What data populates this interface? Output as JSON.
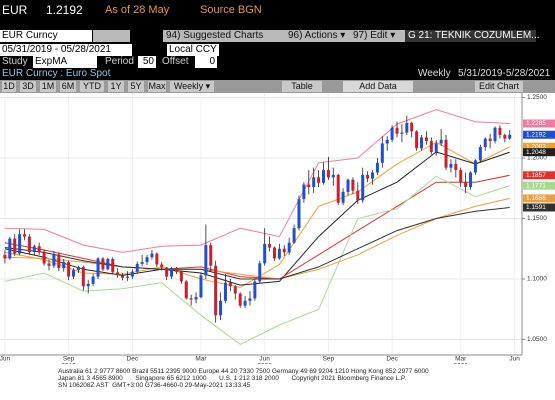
{
  "header": {
    "ticker": "EUR",
    "price": "1.2192",
    "as_of": "As of 28 May",
    "source": "Source BGN"
  },
  "toolbar": {
    "security": "EUR Curncy",
    "suggested": "94) Suggested Charts",
    "actions": "96) Actions ▾",
    "edit": "97) Edit ▾",
    "chart_name": "G 21: TEKNIK COZUMLEM..."
  },
  "range": {
    "dates": "05/31/2019 - 05/28/2021",
    "currency": "Local CCY"
  },
  "study": {
    "label": "Study",
    "name": "ExpMA",
    "period_label": "Period",
    "period": "50",
    "offset_label": "Offset",
    "offset": "0"
  },
  "info": {
    "security_name": "EUR Curncy : Euro Spot",
    "frequency": "Weekly",
    "period": "5/31/2019-5/28/2021"
  },
  "buttons": [
    "1D",
    "3D",
    "1M",
    "6M",
    "YTD",
    "1Y",
    "5Y",
    "Max",
    "Weekly ▾",
    "Table",
    "Add Data",
    "Edit Chart"
  ],
  "chart_data": {
    "type": "candlestick",
    "open": [
      1.12,
      1.117,
      1.1334,
      1.121,
      1.137,
      1.135,
      1.1223,
      1.127,
      1.122,
      1.1128,
      1.1109,
      1.1203,
      1.109,
      1.114,
      1.102,
      1.1073,
      1.11,
      1.094,
      1.096,
      1.102,
      1.117,
      1.108,
      1.1165,
      1.1055,
      1.103,
      1.101,
      1.102,
      1.106,
      1.1125,
      1.114,
      1.118,
      1.121,
      1.112,
      1.1095,
      1.102,
      1.109,
      1.106,
      1.098,
      1.084,
      1.083,
      1.085,
      1.103,
      1.128,
      1.111,
      1.07,
      1.082,
      1.097,
      1.094,
      1.088,
      1.078,
      1.082,
      1.084,
      1.098,
      1.113,
      1.129,
      1.126,
      1.117,
      1.125,
      1.122,
      1.13,
      1.142,
      1.166,
      1.178,
      1.176,
      1.184,
      1.1795,
      1.19,
      1.184,
      1.186,
      1.163,
      1.172,
      1.182,
      1.173,
      1.165,
      1.186,
      1.183,
      1.188,
      1.196,
      1.212,
      1.215,
      1.225,
      1.22,
      1.221,
      1.229,
      1.222,
      1.208,
      1.217,
      1.214,
      1.205,
      1.212,
      1.215,
      1.192,
      1.195,
      1.19,
      1.18,
      1.176,
      1.188,
      1.198,
      1.209,
      1.216,
      1.214,
      1.225,
      1.219,
      1.216
    ],
    "high": [
      1.124,
      1.1347,
      1.137,
      1.141,
      1.141,
      1.137,
      1.1285,
      1.13,
      1.1245,
      1.116,
      1.123,
      1.122,
      1.1165,
      1.115,
      1.109,
      1.111,
      1.111,
      1.099,
      1.104,
      1.118,
      1.118,
      1.1175,
      1.118,
      1.109,
      1.105,
      1.1065,
      1.108,
      1.1145,
      1.12,
      1.12,
      1.124,
      1.122,
      1.114,
      1.11,
      1.11,
      1.11,
      1.107,
      1.099,
      1.087,
      1.089,
      1.105,
      1.145,
      1.13,
      1.115,
      1.089,
      1.104,
      1.1,
      1.095,
      1.089,
      1.086,
      1.09,
      1.1,
      1.115,
      1.142,
      1.135,
      1.127,
      1.129,
      1.128,
      1.134,
      1.145,
      1.169,
      1.18,
      1.19,
      1.192,
      1.19,
      1.1965,
      1.201,
      1.192,
      1.187,
      1.175,
      1.183,
      1.184,
      1.18,
      1.192,
      1.189,
      1.19,
      1.2,
      1.218,
      1.218,
      1.227,
      1.23,
      1.228,
      1.235,
      1.23,
      1.223,
      1.219,
      1.222,
      1.217,
      1.215,
      1.224,
      1.219,
      1.199,
      1.199,
      1.192,
      1.188,
      1.189,
      1.199,
      1.211,
      1.217,
      1.22,
      1.226,
      1.227,
      1.22,
      1.223
    ],
    "low": [
      1.113,
      1.116,
      1.119,
      1.1195,
      1.132,
      1.12,
      1.1195,
      1.12,
      1.111,
      1.107,
      1.109,
      1.1065,
      1.106,
      1.099,
      1.1,
      1.105,
      1.0905,
      1.088,
      1.094,
      1.1,
      1.1065,
      1.107,
      1.104,
      1.101,
      1.099,
      1.0985,
      1.1,
      1.105,
      1.1105,
      1.1115,
      1.116,
      1.11,
      1.107,
      1.099,
      1.1,
      1.104,
      1.096,
      1.083,
      1.078,
      1.08,
      1.084,
      1.1,
      1.106,
      1.064,
      1.066,
      1.08,
      1.09,
      1.083,
      1.076,
      1.076,
      1.078,
      1.082,
      1.097,
      1.111,
      1.123,
      1.115,
      1.116,
      1.119,
      1.12,
      1.129,
      1.14,
      1.163,
      1.17,
      1.171,
      1.176,
      1.178,
      1.182,
      1.177,
      1.161,
      1.161,
      1.169,
      1.17,
      1.162,
      1.163,
      1.18,
      1.178,
      1.186,
      1.192,
      1.206,
      1.213,
      1.217,
      1.213,
      1.219,
      1.217,
      1.206,
      1.206,
      1.211,
      1.203,
      1.202,
      1.21,
      1.19,
      1.188,
      1.184,
      1.176,
      1.171,
      1.174,
      1.186,
      1.196,
      1.206,
      1.208,
      1.212,
      1.216,
      1.213,
      1.215
    ],
    "close": [
      1.117,
      1.1334,
      1.121,
      1.137,
      1.135,
      1.1223,
      1.127,
      1.122,
      1.1128,
      1.1109,
      1.1203,
      1.109,
      1.114,
      1.102,
      1.1073,
      1.11,
      1.094,
      1.096,
      1.102,
      1.117,
      1.108,
      1.1165,
      1.1055,
      1.103,
      1.101,
      1.102,
      1.106,
      1.1125,
      1.114,
      1.118,
      1.121,
      1.112,
      1.1095,
      1.102,
      1.109,
      1.106,
      1.098,
      1.084,
      1.083,
      1.085,
      1.103,
      1.128,
      1.111,
      1.07,
      1.082,
      1.097,
      1.094,
      1.088,
      1.078,
      1.082,
      1.084,
      1.098,
      1.113,
      1.129,
      1.126,
      1.117,
      1.125,
      1.122,
      1.13,
      1.142,
      1.166,
      1.178,
      1.176,
      1.184,
      1.1795,
      1.19,
      1.184,
      1.186,
      1.163,
      1.172,
      1.182,
      1.173,
      1.165,
      1.186,
      1.183,
      1.188,
      1.196,
      1.212,
      1.215,
      1.225,
      1.22,
      1.221,
      1.229,
      1.222,
      1.208,
      1.217,
      1.214,
      1.205,
      1.212,
      1.215,
      1.192,
      1.195,
      1.19,
      1.18,
      1.176,
      1.188,
      1.198,
      1.209,
      1.216,
      1.214,
      1.225,
      1.219,
      1.216,
      1.2192
    ],
    "up_color": "#1f4fd0",
    "down_color": "#c8202c",
    "close_label_color": "#1f4fd0",
    "lines": [
      {
        "color": "#f07aa0",
        "x": [
          0,
          8,
          16,
          24,
          32,
          40,
          48,
          56,
          64,
          72,
          80,
          88,
          96,
          103
        ],
        "values": [
          1.142,
          1.141,
          1.128,
          1.122,
          1.127,
          1.128,
          1.142,
          1.135,
          1.196,
          1.2,
          1.228,
          1.24,
          1.23,
          1.2285
        ]
      },
      {
        "color": "#f0a030",
        "x": [
          0,
          8,
          16,
          24,
          32,
          40,
          48,
          56,
          64,
          72,
          80,
          88,
          96,
          103
        ],
        "values": [
          1.122,
          1.116,
          1.105,
          1.104,
          1.11,
          1.1,
          1.093,
          1.112,
          1.16,
          1.172,
          1.195,
          1.213,
          1.195,
          1.2093
        ]
      },
      {
        "color": "#202020",
        "x": [
          0,
          8,
          16,
          24,
          32,
          40,
          48,
          56,
          64,
          72,
          80,
          88,
          96,
          103
        ],
        "values": [
          1.125,
          1.118,
          1.108,
          1.103,
          1.108,
          1.105,
          1.095,
          1.098,
          1.135,
          1.165,
          1.18,
          1.205,
          1.195,
          1.2048
        ]
      },
      {
        "color": "#e03030",
        "x": [
          0,
          8,
          16,
          24,
          32,
          40,
          48,
          56,
          64,
          72,
          80,
          88,
          96,
          103
        ],
        "values": [
          1.13,
          1.124,
          1.117,
          1.11,
          1.108,
          1.11,
          1.102,
          1.1,
          1.12,
          1.14,
          1.16,
          1.18,
          1.18,
          1.1857
        ]
      },
      {
        "color": "#a8d890",
        "x": [
          0,
          8,
          16,
          24,
          32,
          40,
          48,
          56,
          64,
          72,
          80,
          88,
          96,
          103
        ],
        "values": [
          1.098,
          1.105,
          1.09,
          1.092,
          1.097,
          1.07,
          1.046,
          1.062,
          1.075,
          1.15,
          1.158,
          1.185,
          1.168,
          1.1771
        ]
      },
      {
        "color": "#e8a040",
        "x": [
          0,
          8,
          16,
          24,
          32,
          40,
          48,
          56,
          64,
          72,
          80,
          88,
          96,
          103
        ],
        "values": [
          1.118,
          1.117,
          1.114,
          1.11,
          1.108,
          1.108,
          1.104,
          1.1,
          1.108,
          1.12,
          1.136,
          1.15,
          1.16,
          1.1666
        ]
      },
      {
        "color": "#303030",
        "x": [
          0,
          8,
          16,
          24,
          32,
          40,
          48,
          56,
          64,
          72,
          80,
          88,
          96,
          103
        ],
        "values": [
          1.126,
          1.122,
          1.115,
          1.11,
          1.108,
          1.108,
          1.1,
          1.1,
          1.11,
          1.125,
          1.14,
          1.15,
          1.156,
          1.1591
        ]
      }
    ],
    "ylim": [
      1.0372,
      1.2537
    ],
    "yticks": [
      {
        "value": 1.05,
        "label": "1.0500"
      },
      {
        "value": 1.1,
        "label": "1.1000"
      },
      {
        "value": 1.15,
        "label": "1.1500"
      },
      {
        "value": 1.2,
        "label": "1.2000"
      },
      {
        "value": 1.25,
        "label": "1.2500"
      }
    ],
    "xlim": [
      -1,
      105.5
    ],
    "xticks": [
      {
        "value": 0,
        "label": "Jun"
      },
      {
        "value": 13,
        "label": "Sep"
      },
      {
        "value": 26,
        "label": "Dec"
      },
      {
        "value": 40,
        "label": "Mar"
      },
      {
        "value": 53,
        "label": "Jun"
      },
      {
        "value": 66,
        "label": "Sep"
      },
      {
        "value": 79,
        "label": "Dec"
      },
      {
        "value": 93,
        "label": "Mar"
      },
      {
        "value": 104,
        "label": "Jun"
      }
    ],
    "year_ticks": [
      {
        "value": 13,
        "label": "2019"
      },
      {
        "value": 53,
        "label": "2020"
      },
      {
        "value": 93,
        "label": "2021"
      }
    ],
    "grid": true
  },
  "footer": [
    "Australia 61 2 9777 8600 Brazil 5511 2395 9000 Europe 44 20 7330 7500 Germany 49 69 9204 1210 Hong Kong 852 2977 6000",
    "Japan 81 3 4565 8900       Singapore 65 6212 1000       U.S. 1 212 318 2000       Copyright 2021 Bloomberg Finance L.P.",
    "SN 106208Z AST  GMT+3:00 G736-4660-0 29-May-2021 13:33:45"
  ]
}
